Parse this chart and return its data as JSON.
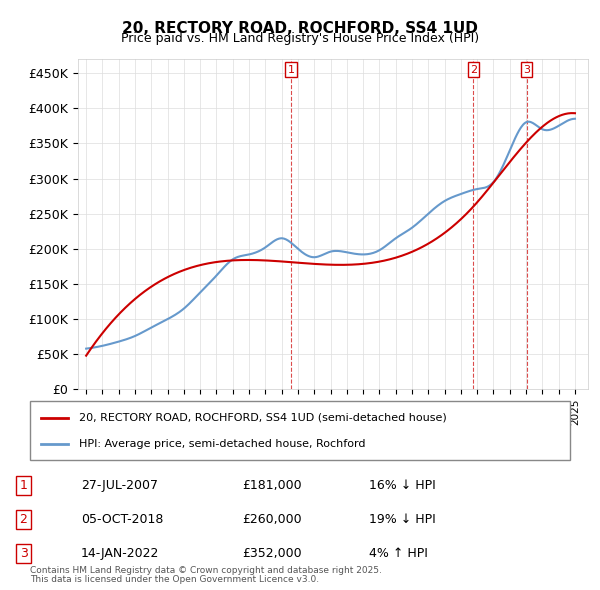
{
  "title": "20, RECTORY ROAD, ROCHFORD, SS4 1UD",
  "subtitle": "Price paid vs. HM Land Registry's House Price Index (HPI)",
  "legend_line1": "20, RECTORY ROAD, ROCHFORD, SS4 1UD (semi-detached house)",
  "legend_line2": "HPI: Average price, semi-detached house, Rochford",
  "footer1": "Contains HM Land Registry data © Crown copyright and database right 2025.",
  "footer2": "This data is licensed under the Open Government Licence v3.0.",
  "transactions": [
    {
      "num": 1,
      "date": "27-JUL-2007",
      "price": "£181,000",
      "hpi": "16% ↓ HPI",
      "year": 2007.57
    },
    {
      "num": 2,
      "date": "05-OCT-2018",
      "price": "£260,000",
      "hpi": "19% ↓ HPI",
      "year": 2018.76
    },
    {
      "num": 3,
      "date": "14-JAN-2022",
      "price": "£352,000",
      "hpi": "4% ↑ HPI",
      "year": 2022.04
    }
  ],
  "price_color": "#cc0000",
  "hpi_color": "#6699cc",
  "background_color": "#ffffff",
  "grid_color": "#dddddd",
  "ylim": [
    0,
    470000
  ],
  "yticks": [
    0,
    50000,
    100000,
    150000,
    200000,
    250000,
    300000,
    350000,
    400000,
    450000
  ],
  "ytick_labels": [
    "£0",
    "£50K",
    "£100K",
    "£150K",
    "£200K",
    "£250K",
    "£300K",
    "£350K",
    "£400K",
    "£450K"
  ],
  "xlim_start": 1994.5,
  "xlim_end": 2025.8
}
